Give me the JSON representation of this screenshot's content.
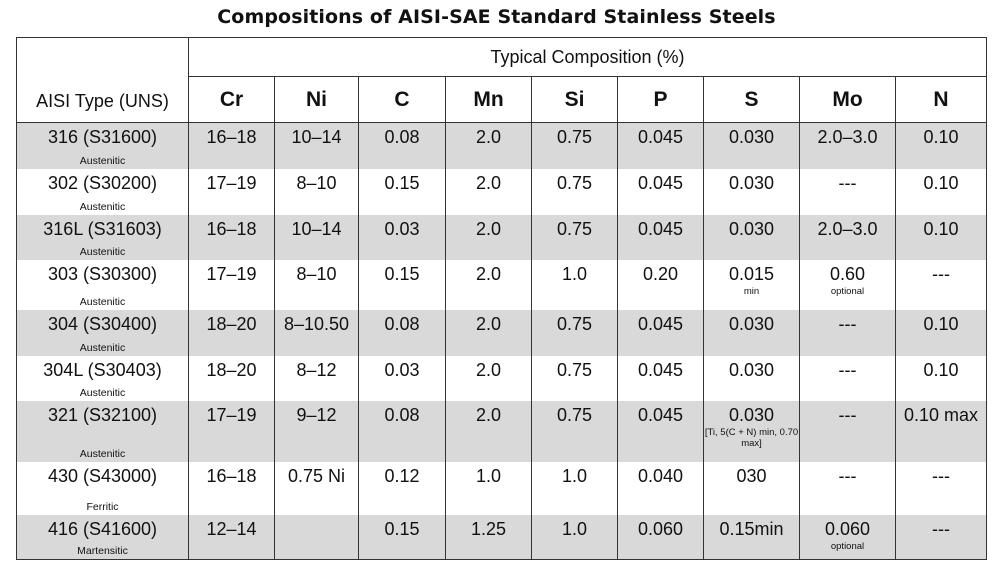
{
  "title": "Compositions of AISI-SAE Standard Stainless Steels",
  "header": {
    "type_label": "AISI Type (UNS)",
    "group_label": "Typical Composition (%)",
    "elements": [
      "Cr",
      "Ni",
      "C",
      "Mn",
      "Si",
      "P",
      "S",
      "Mo",
      "N"
    ]
  },
  "rows": [
    {
      "type": "316 (S31600)",
      "class": "Austenitic",
      "cr": "16–18",
      "ni": "10–14",
      "c": "0.08",
      "mn": "2.0",
      "si": "0.75",
      "p": "0.045",
      "s": "0.030",
      "s_note": "",
      "mo": "2.0–3.0",
      "mo_note": "",
      "n": "0.10"
    },
    {
      "type": "302 (S30200)",
      "class": "Austenitic",
      "cr": "17–19",
      "ni": "8–10",
      "c": "0.15",
      "mn": "2.0",
      "si": "0.75",
      "p": "0.045",
      "s": "0.030",
      "s_note": "",
      "mo": "---",
      "mo_note": "",
      "n": "0.10"
    },
    {
      "type": "316L (S31603)",
      "class": "Austenitic",
      "cr": "16–18",
      "ni": "10–14",
      "c": "0.03",
      "mn": "2.0",
      "si": "0.75",
      "p": "0.045",
      "s": "0.030",
      "s_note": "",
      "mo": "2.0–3.0",
      "mo_note": "",
      "n": "0.10"
    },
    {
      "type": "303 (S30300)",
      "class": "Austenitic",
      "cr": "17–19",
      "ni": "8–10",
      "c": "0.15",
      "mn": "2.0",
      "si": "1.0",
      "p": "0.20",
      "s": "0.015",
      "s_note": "min",
      "mo": "0.60",
      "mo_note": "optional",
      "n": "---"
    },
    {
      "type": "304 (S30400)",
      "class": "Austenitic",
      "cr": "18–20",
      "ni": "8–10.50",
      "c": "0.08",
      "mn": "2.0",
      "si": "0.75",
      "p": "0.045",
      "s": "0.030",
      "s_note": "",
      "mo": "---",
      "mo_note": "",
      "n": "0.10"
    },
    {
      "type": "304L (S30403)",
      "class": "Austenitic",
      "cr": "18–20",
      "ni": "8–12",
      "c": "0.03",
      "mn": "2.0",
      "si": "0.75",
      "p": "0.045",
      "s": "0.030",
      "s_note": "",
      "mo": "---",
      "mo_note": "",
      "n": "0.10"
    },
    {
      "type": "321 (S32100)",
      "class": "Austenitic",
      "cr": "17–19",
      "ni": "9–12",
      "c": "0.08",
      "mn": "2.0",
      "si": "0.75",
      "p": "0.045",
      "s": "0.030",
      "s_note": "[Ti, 5(C + N) min, 0.70 max]",
      "mo": "---",
      "mo_note": "",
      "n": "0.10 max"
    },
    {
      "type": "430 (S43000)",
      "class": "Ferritic",
      "cr": "16–18",
      "ni": "0.75 Ni",
      "c": "0.12",
      "mn": "1.0",
      "si": "1.0",
      "p": "0.040",
      "s": "030",
      "s_note": "",
      "mo": "---",
      "mo_note": "",
      "n": "---"
    },
    {
      "type": "416 (S41600)",
      "class": "Martensitic",
      "cr": "12–14",
      "ni": "",
      "c": "0.15",
      "mn": "1.25",
      "si": "1.0",
      "p": "0.060",
      "s": "0.15min",
      "s_note": "",
      "mo": "0.060",
      "mo_note": "optional",
      "n": "---"
    }
  ]
}
